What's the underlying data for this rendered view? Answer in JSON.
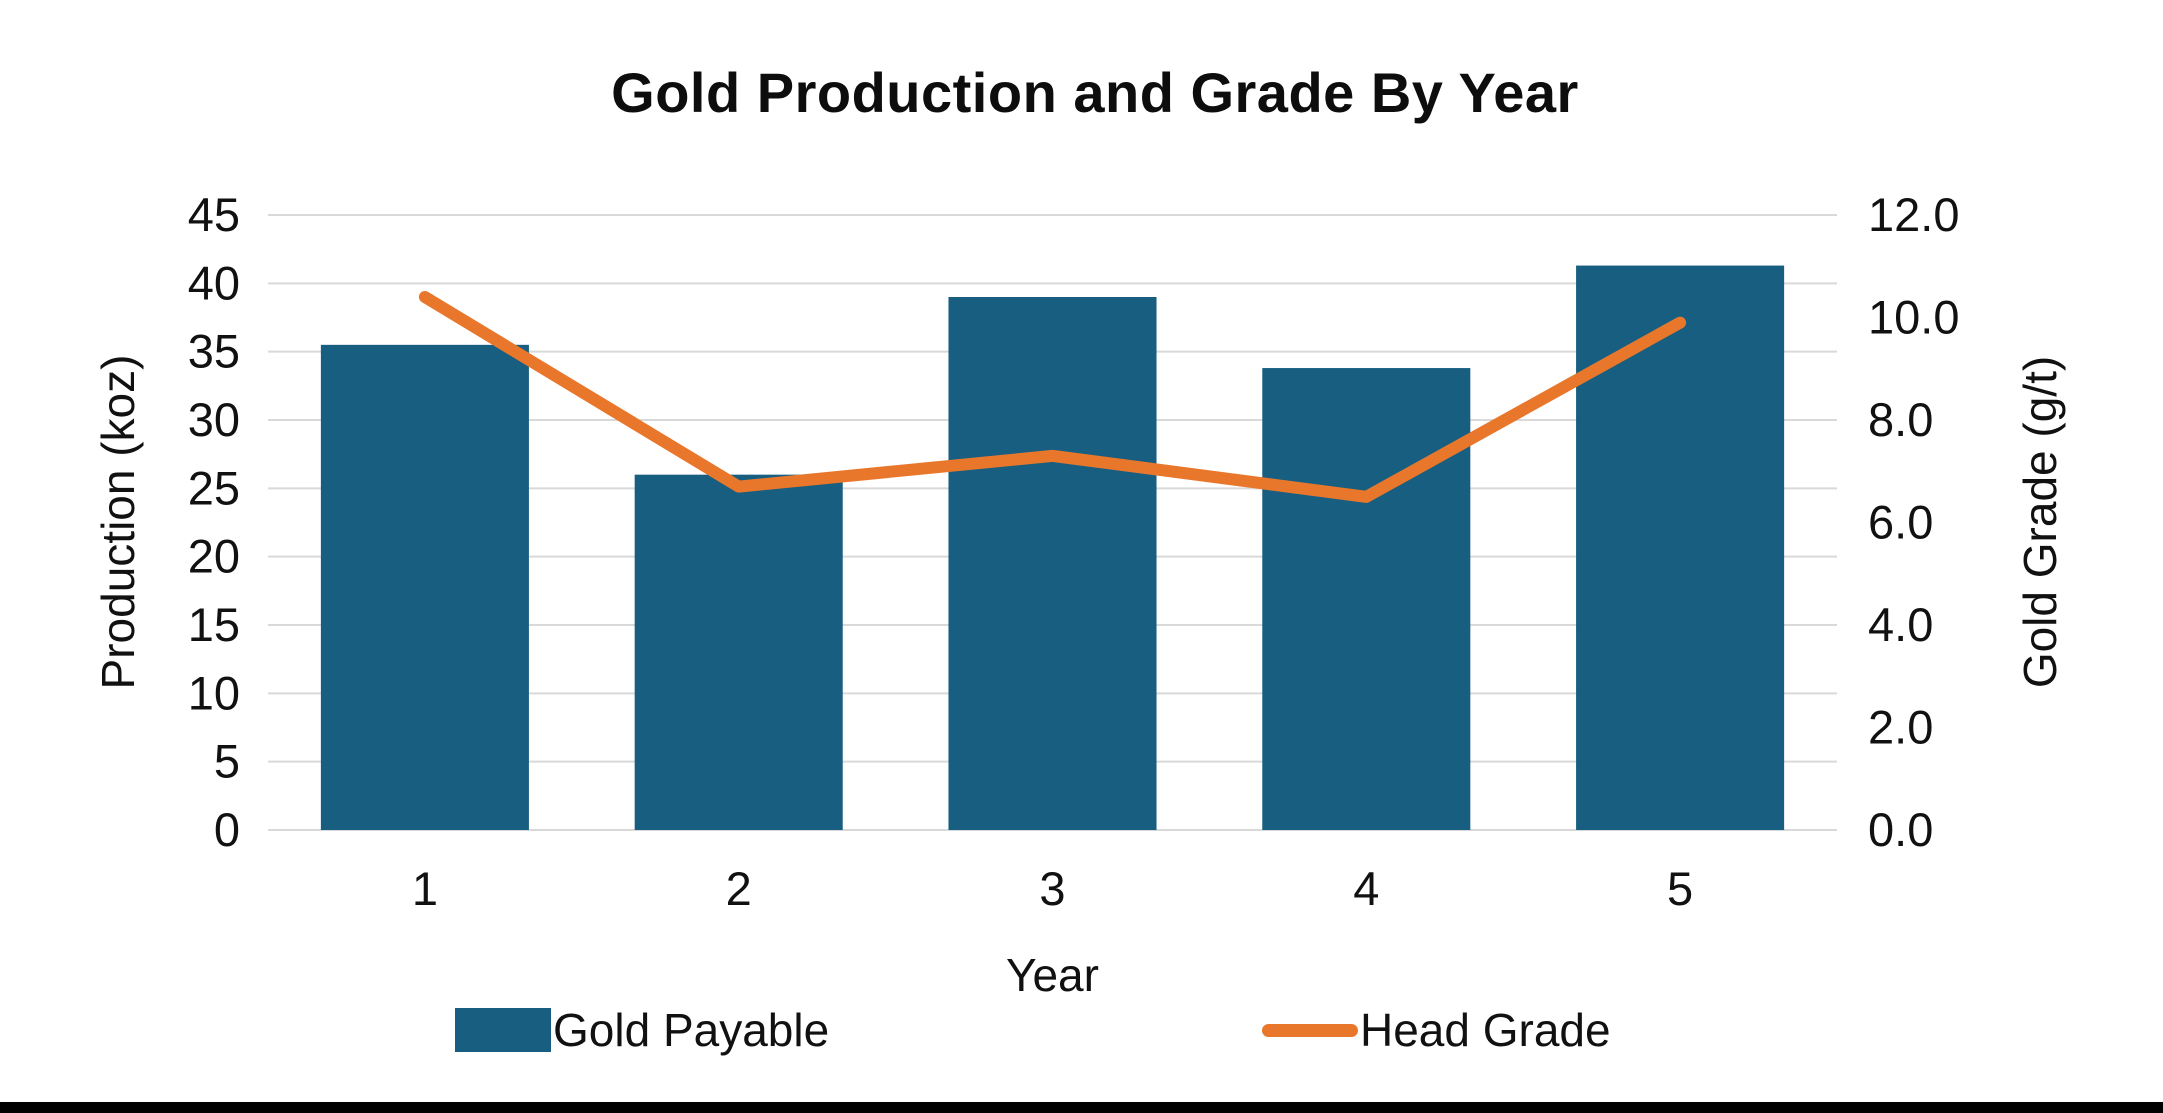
{
  "chart_data": {
    "type": "combo-bar-line",
    "title": "Gold Production and Grade By Year",
    "categories": [
      "1",
      "2",
      "3",
      "4",
      "5"
    ],
    "xlabel": "Year",
    "left_axis": {
      "label": "Production (koz)",
      "min": 0,
      "max": 45,
      "tick_step": 5,
      "ticks": [
        "0",
        "5",
        "10",
        "15",
        "20",
        "25",
        "30",
        "35",
        "40",
        "45"
      ]
    },
    "right_axis": {
      "label": "Gold Grade (g/t)",
      "min": 0.0,
      "max": 12.0,
      "tick_step": 2.0,
      "ticks": [
        "0.0",
        "2.0",
        "4.0",
        "6.0",
        "8.0",
        "10.0",
        "12.0"
      ]
    },
    "series": [
      {
        "name": "Gold Payable",
        "type": "bar",
        "axis": "left",
        "color": "#175E80",
        "values": [
          35.5,
          26.0,
          39.0,
          33.8,
          41.3
        ]
      },
      {
        "name": "Head Grade",
        "type": "line",
        "axis": "right",
        "color": "#E8772C",
        "values": [
          10.4,
          6.7,
          7.3,
          6.5,
          9.9
        ]
      }
    ],
    "grid": true,
    "gridline_color": "#D9D9D9",
    "legend_position": "bottom",
    "plot_background": "#FFFFFF"
  },
  "legend": {
    "bar_label": "Gold Payable",
    "line_label": "Head Grade"
  },
  "footer": {
    "bar_color": "#000000"
  }
}
